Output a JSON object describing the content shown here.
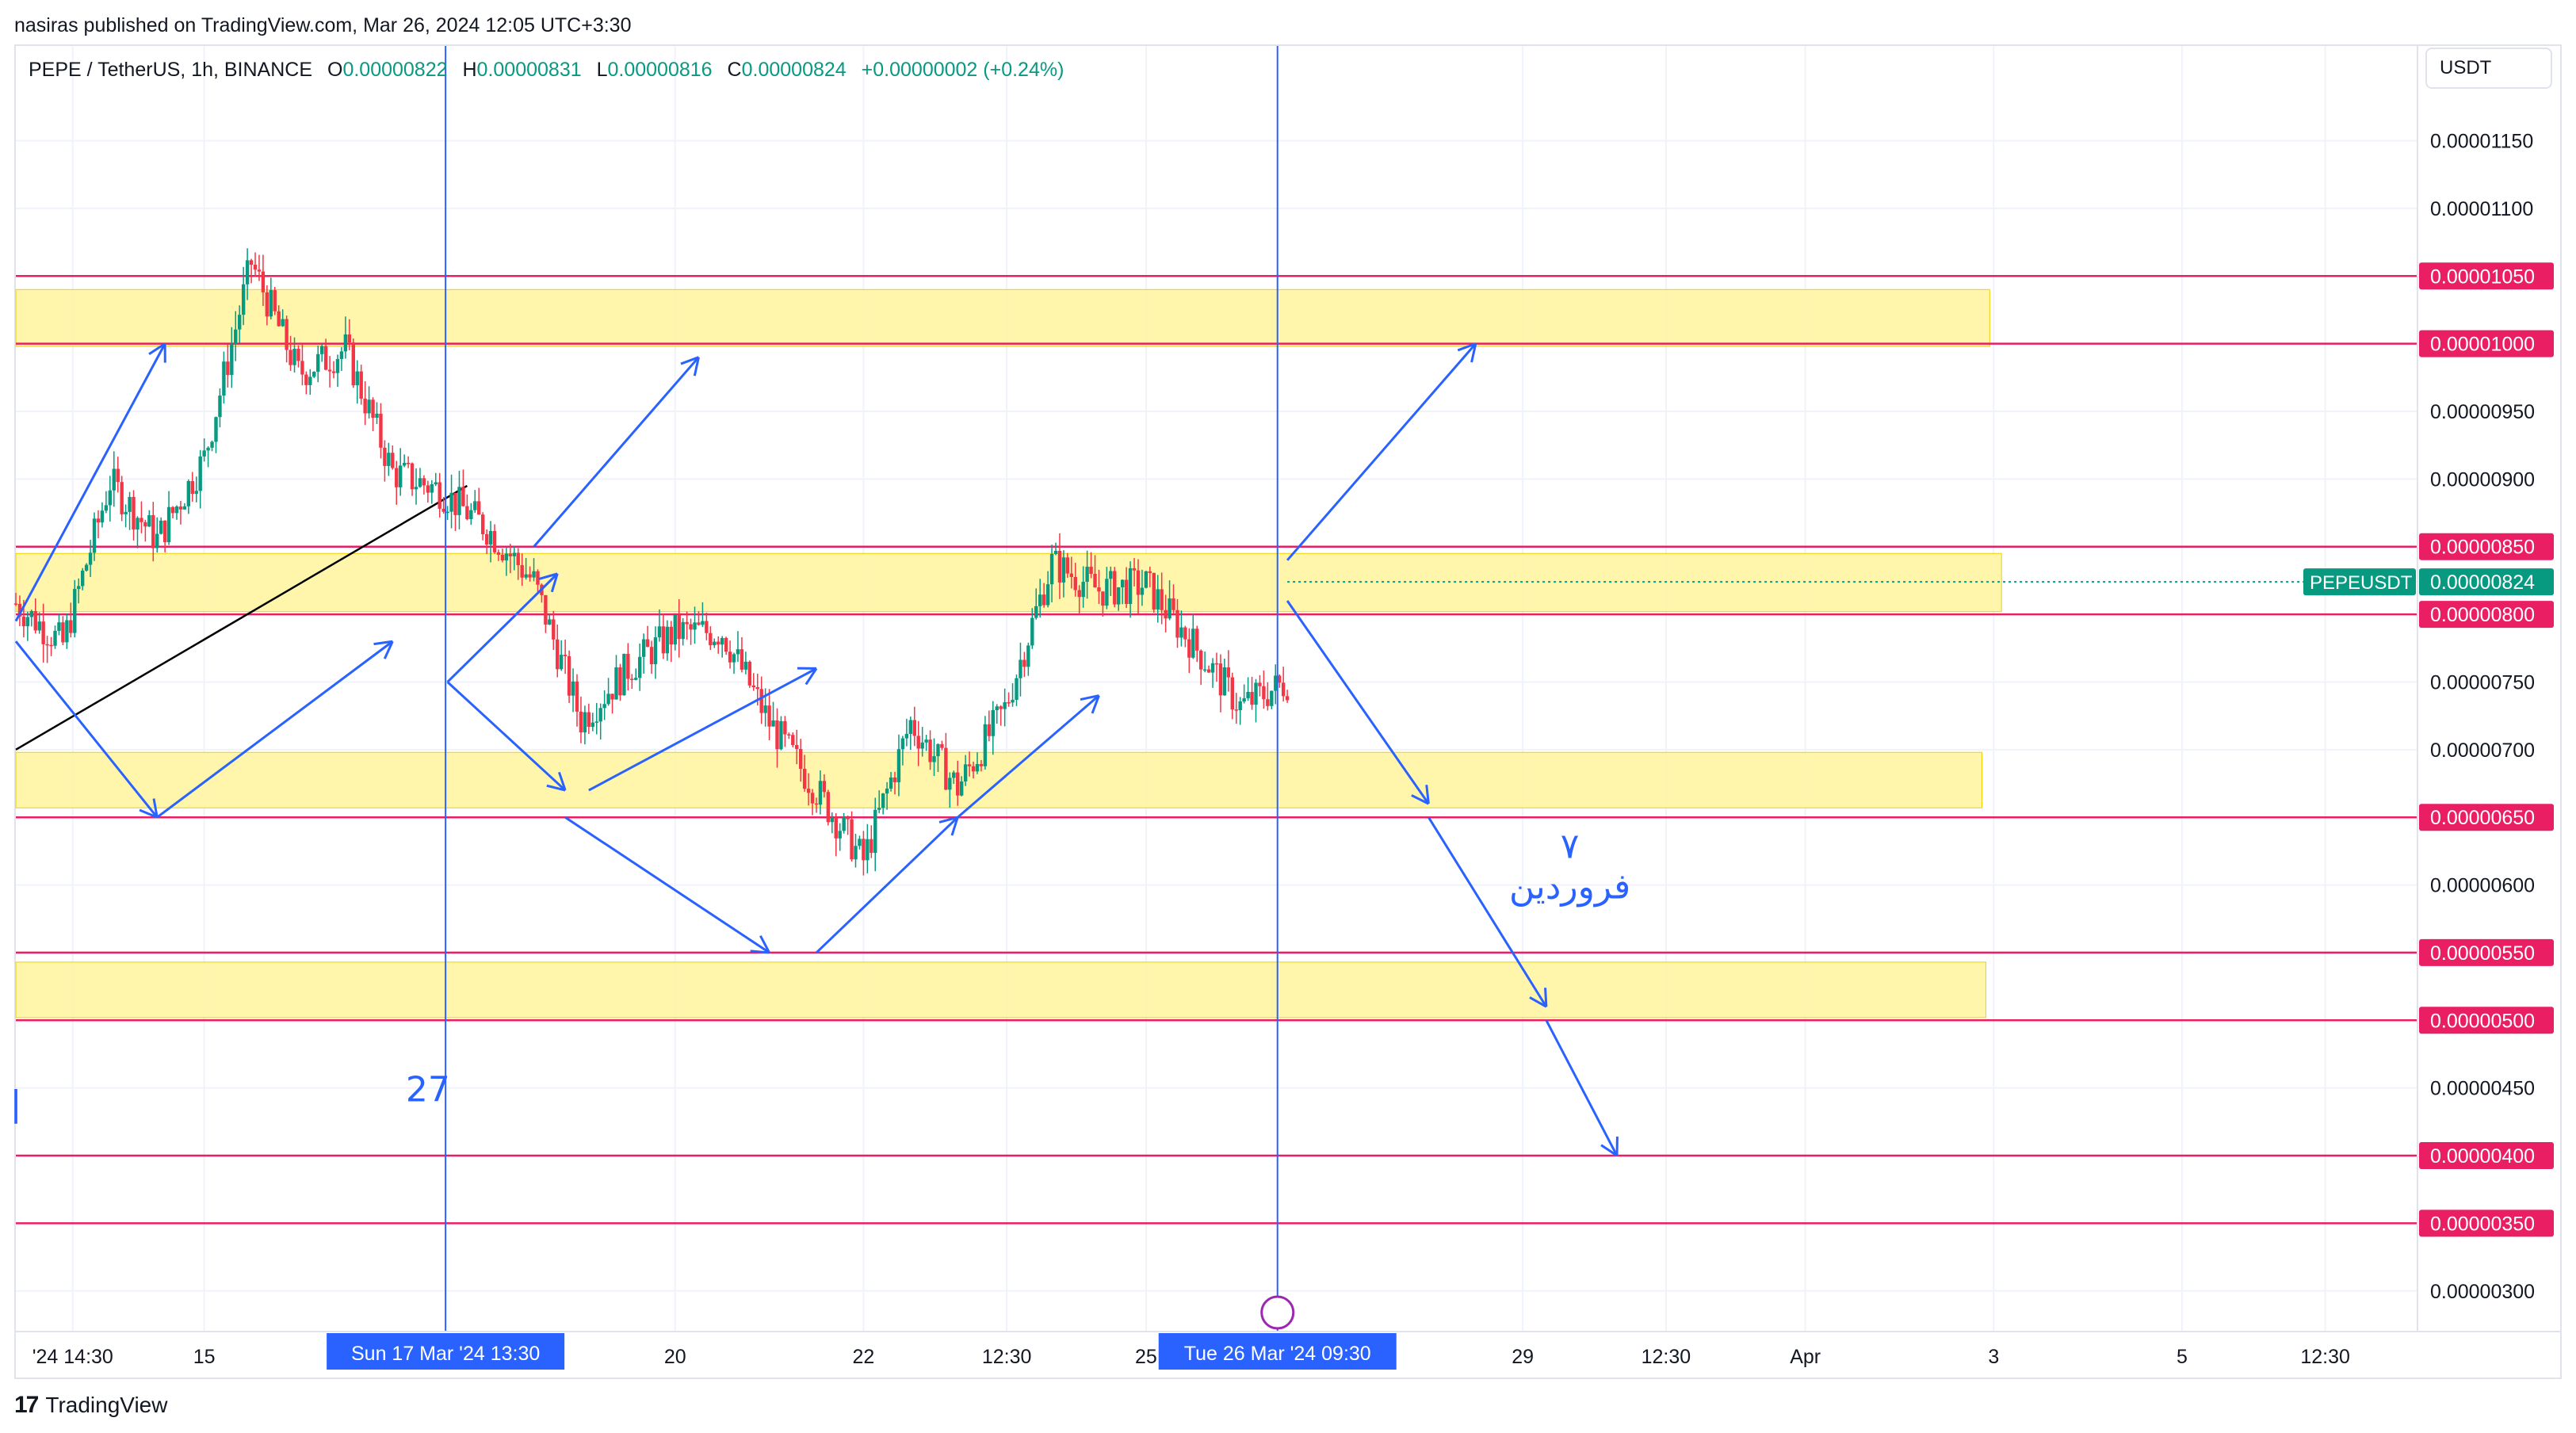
{
  "header": {
    "published_by": "nasiras published on TradingView.com, Mar 26, 2024 12:05 UTC+3:30"
  },
  "legend": {
    "symbol": "PEPE / TetherUS, 1h, BINANCE",
    "open_label": "O",
    "open": "0.00000822",
    "high_label": "H",
    "high": "0.00000831",
    "low_label": "L",
    "low": "0.00000816",
    "close_label": "C",
    "close": "0.00000824",
    "change": "+0.00000002 (+0.24%)"
  },
  "currency": "USDT",
  "footer": {
    "brand": "TradingView"
  },
  "colors": {
    "up": "#089981",
    "down": "#f23645",
    "level_line": "#e91e63",
    "zone_fill": "#fff59d",
    "arrow": "#2962ff",
    "price_tag": "#089981"
  },
  "chart_data": {
    "type": "candlestick",
    "symbol_tag": "PEPEUSDT",
    "last_price": "0.00000824",
    "ylim": [
      2.7e-06,
      1.22e-05
    ],
    "y_ticks": [
      "0.00001150",
      "0.00001100",
      "0.00000950",
      "0.00000900",
      "0.00000750",
      "0.00000700",
      "0.00000600",
      "0.00000450",
      "0.00000300"
    ],
    "level_labels": [
      "0.00001050",
      "0.00001000",
      "0.00000850",
      "0.00000800",
      "0.00000650",
      "0.00000550",
      "0.00000500",
      "0.00000400",
      "0.00000350"
    ],
    "levels": [
      1.05e-05,
      1e-05,
      8.5e-06,
      8e-06,
      6.5e-06,
      5.5e-06,
      5e-06,
      4e-06,
      3.5e-06
    ],
    "zones": [
      {
        "from": 9.98e-06,
        "to": 1.04e-05,
        "end": "2024-04-02 23:00"
      },
      {
        "from": 8.02e-06,
        "to": 8.45e-06,
        "end": "2024-04-03 02:00"
      },
      {
        "from": 6.57e-06,
        "to": 6.98e-06,
        "end": "2024-04-02 21:00"
      },
      {
        "from": 5.02e-06,
        "to": 5.43e-06,
        "end": "2024-04-02 22:00"
      }
    ],
    "x_ticks": [
      {
        "label": "'24  14:30",
        "time": "2024-03-13 14:30"
      },
      {
        "label": "15",
        "time": "2024-03-15 00:00"
      },
      {
        "label": "20",
        "time": "2024-03-20 00:00"
      },
      {
        "label": "22",
        "time": "2024-03-22 00:00"
      },
      {
        "label": "12:30",
        "time": "2024-03-23 12:30"
      },
      {
        "label": "25",
        "time": "2024-03-25 00:00"
      },
      {
        "label": "29",
        "time": "2024-03-29 00:00"
      },
      {
        "label": "12:30",
        "time": "2024-03-30 12:30"
      },
      {
        "label": "Apr",
        "time": "2024-04-01 00:00"
      },
      {
        "label": "3",
        "time": "2024-04-03 00:00"
      },
      {
        "label": "5",
        "time": "2024-04-05 00:00"
      },
      {
        "label": "12:30",
        "time": "2024-04-06 12:30"
      }
    ],
    "crosshair_labels": [
      {
        "label": "Sun 17 Mar '24   13:30",
        "time": "2024-03-17 13:30"
      },
      {
        "label": "Tue 26 Mar '24   09:30",
        "time": "2024-03-26 09:30"
      }
    ],
    "trendline": [
      {
        "time": "2024-03-13 00:00",
        "price": 7e-06
      },
      {
        "time": "2024-03-17 19:00",
        "price": 8.95e-06
      }
    ],
    "price_path": [
      {
        "time": "2024-03-13 00:00",
        "price": 8.08e-06
      },
      {
        "time": "2024-03-13 12:00",
        "price": 7.78e-06
      },
      {
        "time": "2024-03-14 00:00",
        "price": 8.98e-06
      },
      {
        "time": "2024-03-14 12:00",
        "price": 8.55e-06
      },
      {
        "time": "2024-03-15 00:00",
        "price": 9.15e-06
      },
      {
        "time": "2024-03-15 12:00",
        "price": 1.06e-05
      },
      {
        "time": "2024-03-16 00:00",
        "price": 9.78e-06
      },
      {
        "time": "2024-03-16 12:00",
        "price": 9.96e-06
      },
      {
        "time": "2024-03-17 00:00",
        "price": 9.05e-06
      },
      {
        "time": "2024-03-17 12:00",
        "price": 8.92e-06
      },
      {
        "time": "2024-03-18 00:00",
        "price": 8.64e-06
      },
      {
        "time": "2024-03-18 12:00",
        "price": 8.24e-06
      },
      {
        "time": "2024-03-19 00:00",
        "price": 7.22e-06
      },
      {
        "time": "2024-03-19 12:00",
        "price": 7.6e-06
      },
      {
        "time": "2024-03-20 00:00",
        "price": 7.87e-06
      },
      {
        "time": "2024-03-20 12:00",
        "price": 7.87e-06
      },
      {
        "time": "2024-03-21 00:00",
        "price": 7.2e-06
      },
      {
        "time": "2024-03-21 12:00",
        "price": 6.7e-06
      },
      {
        "time": "2024-03-22 00:00",
        "price": 6.18e-06
      },
      {
        "time": "2024-03-22 12:00",
        "price": 7.2e-06
      },
      {
        "time": "2024-03-23 00:00",
        "price": 6.72e-06
      },
      {
        "time": "2024-03-23 12:00",
        "price": 7.3e-06
      },
      {
        "time": "2024-03-24 00:00",
        "price": 8.38e-06
      },
      {
        "time": "2024-03-24 12:00",
        "price": 8.18e-06
      },
      {
        "time": "2024-03-25 00:00",
        "price": 8.22e-06
      },
      {
        "time": "2024-03-25 12:00",
        "price": 7.78e-06
      },
      {
        "time": "2024-03-26 00:00",
        "price": 7.32e-06
      },
      {
        "time": "2024-03-26 12:00",
        "price": 7.5e-06
      }
    ],
    "annotations": [
      {
        "text": "۷",
        "time": "2024-03-29 12:00",
        "price": 6.2e-06
      },
      {
        "text": "فروردین",
        "time": "2024-03-29 12:00",
        "price": 5.9e-06
      },
      {
        "text": "27",
        "time": "2024-03-17 09:00",
        "price": 4.4e-06
      },
      {
        "text": "|",
        "time": "2024-03-13 00:00",
        "price": 4.3e-06
      }
    ],
    "arrows": [
      [
        {
          "time": "2024-03-13 00:00",
          "price": 7.95e-06
        },
        {
          "time": "2024-03-14 14:00",
          "price": 1e-05
        }
      ],
      [
        {
          "time": "2024-03-13 00:00",
          "price": 7.8e-06
        },
        {
          "time": "2024-03-14 12:00",
          "price": 6.5e-06
        }
      ],
      [
        {
          "time": "2024-03-14 12:00",
          "price": 6.5e-06
        },
        {
          "time": "2024-03-17 00:00",
          "price": 7.8e-06
        }
      ],
      [
        {
          "time": "2024-03-17 14:00",
          "price": 7.5e-06
        },
        {
          "time": "2024-03-18 18:00",
          "price": 8.3e-06
        }
      ],
      [
        {
          "time": "2024-03-18 12:00",
          "price": 8.5e-06
        },
        {
          "time": "2024-03-20 06:00",
          "price": 9.9e-06
        }
      ],
      [
        {
          "time": "2024-03-17 14:00",
          "price": 7.5e-06
        },
        {
          "time": "2024-03-18 20:00",
          "price": 6.7e-06
        }
      ],
      [
        {
          "time": "2024-03-18 20:00",
          "price": 6.5e-06
        },
        {
          "time": "2024-03-21 00:00",
          "price": 5.5e-06
        }
      ],
      [
        {
          "time": "2024-03-19 02:00",
          "price": 6.7e-06
        },
        {
          "time": "2024-03-21 12:00",
          "price": 7.6e-06
        }
      ],
      [
        {
          "time": "2024-03-21 12:00",
          "price": 5.5e-06
        },
        {
          "time": "2024-03-23 00:00",
          "price": 6.5e-06
        }
      ],
      [
        {
          "time": "2024-03-23 00:00",
          "price": 6.5e-06
        },
        {
          "time": "2024-03-24 12:00",
          "price": 7.4e-06
        }
      ],
      [
        {
          "time": "2024-03-26 12:00",
          "price": 8.4e-06
        },
        {
          "time": "2024-03-28 12:00",
          "price": 1e-05
        }
      ],
      [
        {
          "time": "2024-03-26 12:00",
          "price": 8.1e-06
        },
        {
          "time": "2024-03-28 00:00",
          "price": 6.6e-06
        }
      ],
      [
        {
          "time": "2024-03-28 00:00",
          "price": 6.5e-06
        },
        {
          "time": "2024-03-29 06:00",
          "price": 5.1e-06
        }
      ],
      [
        {
          "time": "2024-03-29 06:00",
          "price": 5e-06
        },
        {
          "time": "2024-03-30 00:00",
          "price": 4e-06
        }
      ]
    ],
    "grid": true
  }
}
